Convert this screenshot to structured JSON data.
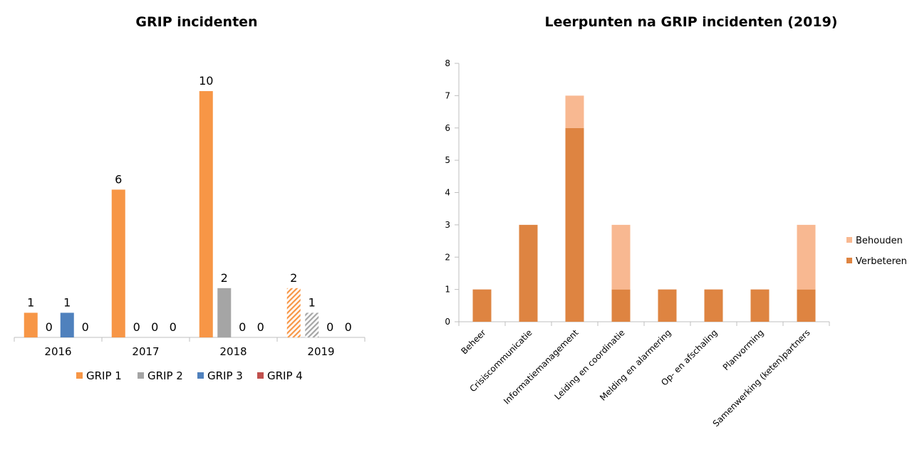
{
  "chart_data": [
    {
      "type": "bar",
      "title": "GRIP incidenten",
      "categories": [
        "2016",
        "2017",
        "2018",
        "2019"
      ],
      "series": [
        {
          "name": "GRIP 1",
          "values": [
            1,
            6,
            10,
            2
          ],
          "color": "#F79646"
        },
        {
          "name": "GRIP 2",
          "values": [
            0,
            0,
            2,
            1
          ],
          "color": "#A5A5A5"
        },
        {
          "name": "GRIP 3",
          "values": [
            1,
            0,
            0,
            0
          ],
          "color": "#4F81BD"
        },
        {
          "name": "GRIP 4",
          "values": [
            0,
            0,
            0,
            0
          ],
          "color": "#C0504D"
        }
      ],
      "hatched_category": "2019",
      "data_labels": true,
      "ylim": [
        0,
        10
      ],
      "legend": "bottom",
      "grid": false
    },
    {
      "type": "bar",
      "stacked": true,
      "title": "Leerpunten na GRIP incidenten (2019)",
      "categories": [
        "Beheer",
        "Crisiscommunicatie",
        "Informatiemanagement",
        "Leiding en coordinatie",
        "Melding en alarmering",
        "Op- en afschaling",
        "Planvorming",
        "Samenwerking (keten)partners"
      ],
      "series": [
        {
          "name": "Verbeteren",
          "values": [
            1,
            3,
            6,
            1,
            1,
            1,
            1,
            1
          ],
          "color": "#DE8441"
        },
        {
          "name": "Behouden",
          "values": [
            0,
            0,
            1,
            2,
            0,
            0,
            0,
            2
          ],
          "color": "#F8B891"
        }
      ],
      "yticks": [
        "0",
        "1",
        "2",
        "3",
        "4",
        "5",
        "6",
        "7",
        "8"
      ],
      "ylim": [
        0,
        8
      ],
      "legend": "right",
      "grid": false
    }
  ]
}
